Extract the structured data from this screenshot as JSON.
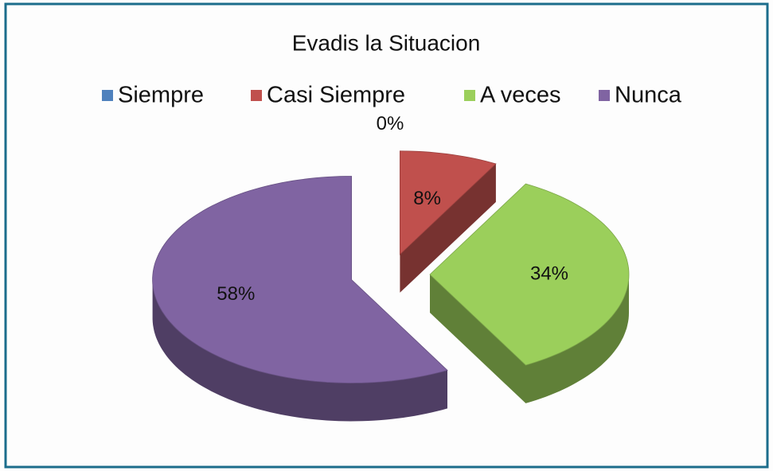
{
  "chart_data": {
    "type": "pie",
    "title": "Evadis la Situacion",
    "categories": [
      "Siempre",
      "Casi Siempre",
      "A veces",
      "Nunca"
    ],
    "values": [
      0,
      8,
      34,
      58
    ],
    "value_labels": [
      "0%",
      "8%",
      "34%",
      "58%"
    ],
    "colors": [
      "#4f81bd",
      "#c0504d",
      "#9bcf5b",
      "#8064a2"
    ],
    "legend": "top",
    "exploded": true,
    "three_d": true
  }
}
